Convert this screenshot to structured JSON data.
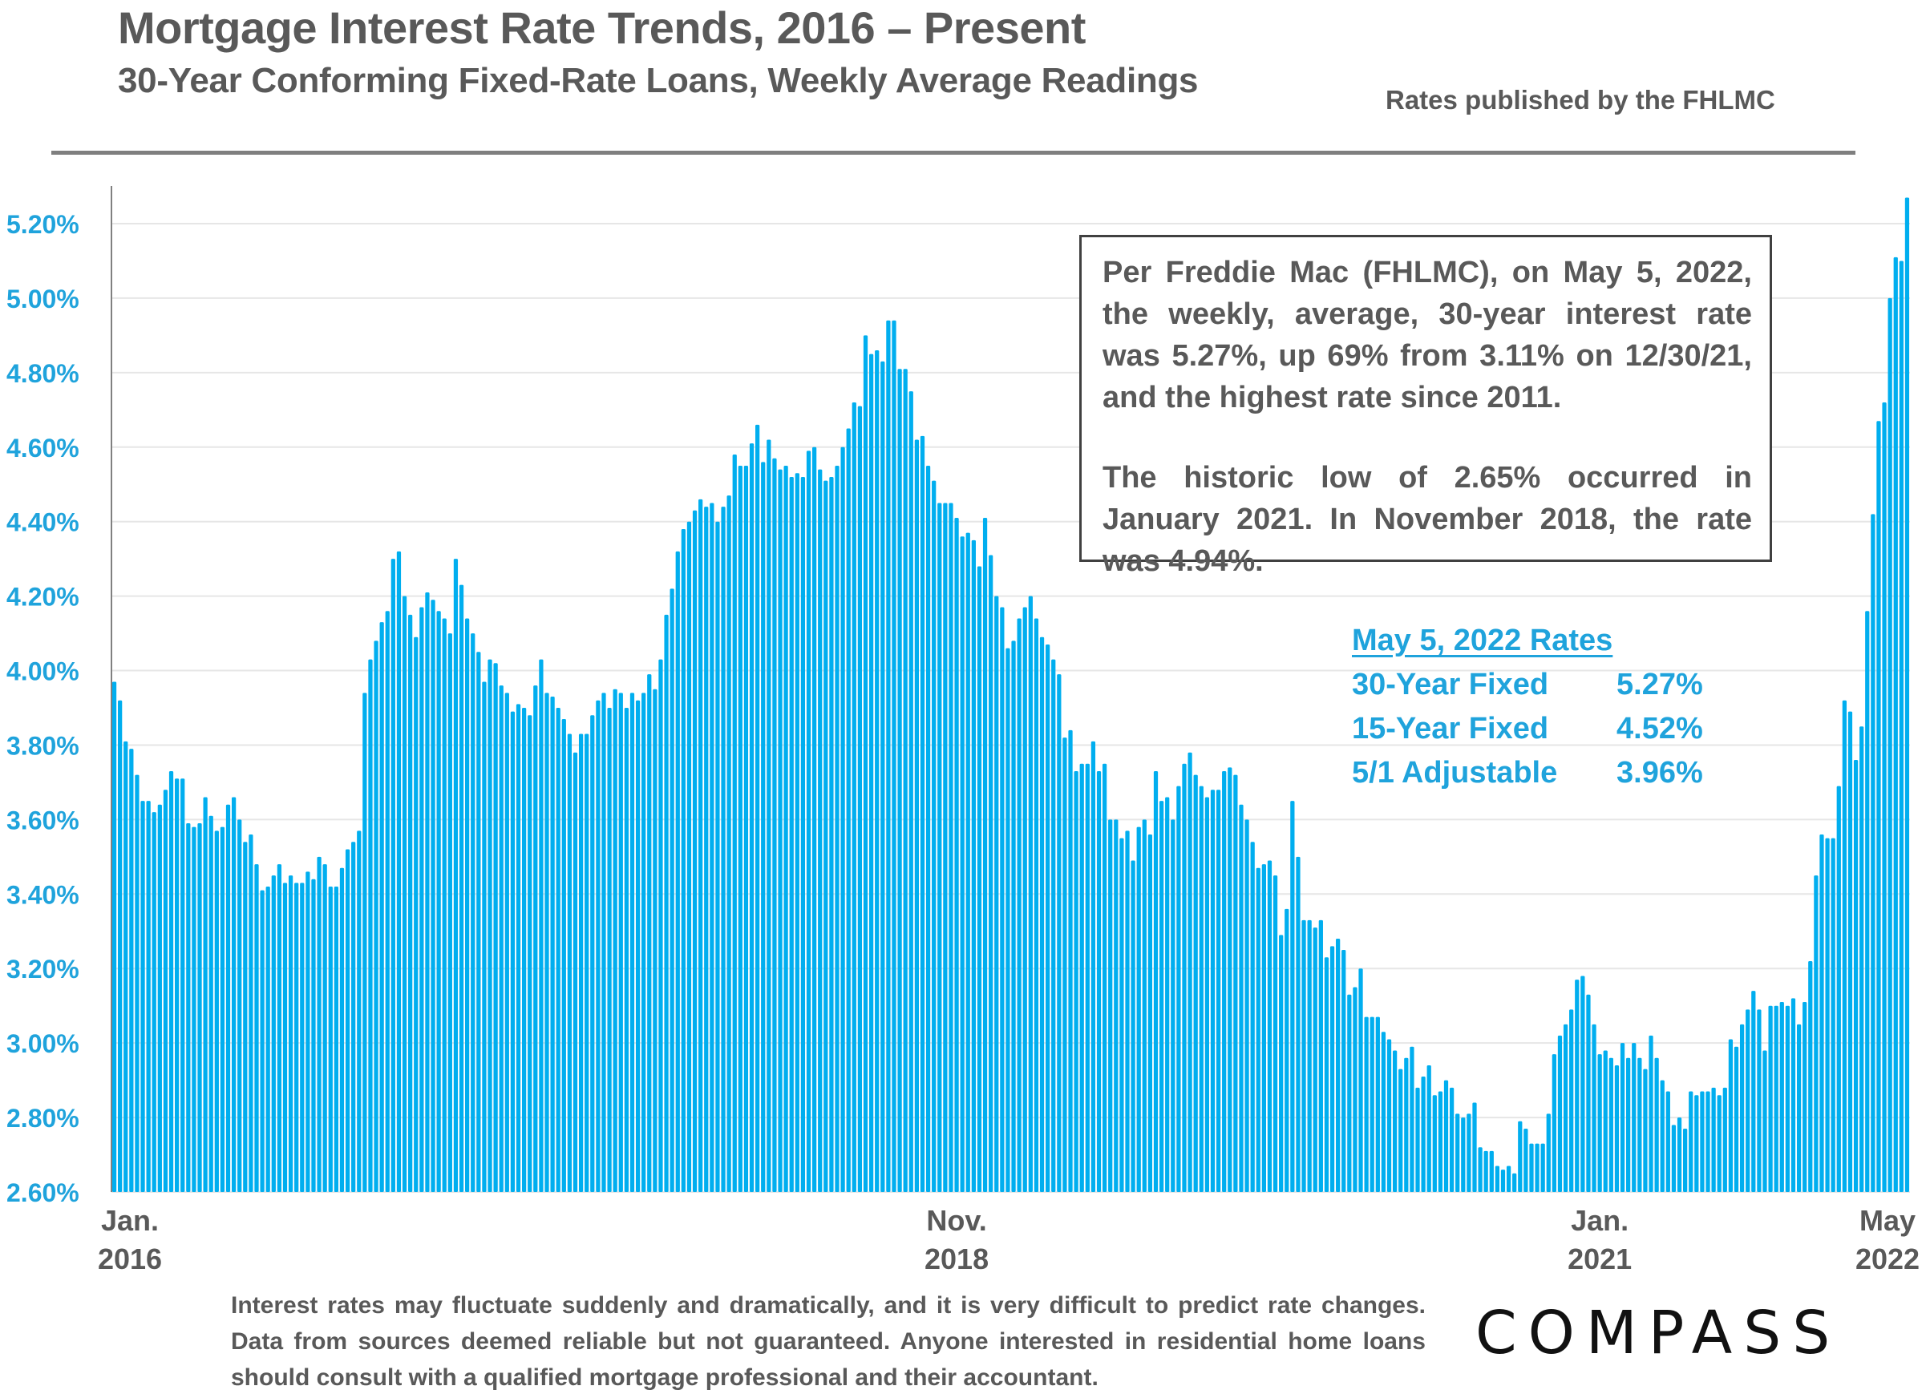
{
  "header": {
    "title": "Mortgage Interest Rate Trends, 2016 – Present",
    "subtitle": "30-Year Conforming Fixed-Rate Loans, Weekly Average Readings",
    "source": "Rates published by the FHLMC"
  },
  "annotation": {
    "paragraph1": "Per Freddie Mac (FHLMC), on May 5, 2022, the weekly, average, 30-year interest rate was 5.27%, up 69% from 3.11% on 12/30/21, and the highest rate since 2011.",
    "paragraph2": "The historic low of 2.65% occurred in January 2021. In November 2018, the rate was 4.94%."
  },
  "rates_panel": {
    "heading": "May 5, 2022 Rates",
    "rows": [
      {
        "label": "30-Year Fixed",
        "value": "5.27%"
      },
      {
        "label": "15-Year Fixed",
        "value": "4.52%"
      },
      {
        "label": "5/1 Adjustable",
        "value": "3.96%"
      }
    ]
  },
  "footer": {
    "disclaimer": "Interest rates may fluctuate suddenly and dramatically, and it is very difficult to predict rate changes. Data from sources deemed reliable but not guaranteed. Anyone interested in residential home loans should consult with a qualified mortgage professional and their accountant.",
    "logo": "COMPASS"
  },
  "colors": {
    "bar": "#00aeef",
    "axis_label": "#1fa3dc",
    "text": "#595959"
  },
  "chart_data": {
    "type": "bar",
    "title": "Mortgage Interest Rate Trends, 2016 – Present",
    "xlabel": "",
    "ylabel": "",
    "ylim": [
      2.6,
      5.3
    ],
    "yticks": [
      2.6,
      2.8,
      3.0,
      3.2,
      3.4,
      3.6,
      3.8,
      4.0,
      4.2,
      4.4,
      4.6,
      4.8,
      5.0,
      5.2
    ],
    "ytick_labels": [
      "2.60%",
      "2.80%",
      "3.00%",
      "3.20%",
      "3.40%",
      "3.60%",
      "3.80%",
      "4.00%",
      "4.20%",
      "4.40%",
      "4.60%",
      "4.80%",
      "5.00%",
      "5.20%"
    ],
    "grid": true,
    "legend": "none",
    "x_labels": [
      {
        "line1": "Jan.",
        "line2": "2016",
        "index": 0
      },
      {
        "line1": "Nov.",
        "line2": "2018",
        "index": 148
      },
      {
        "line1": "Jan.",
        "line2": "2021",
        "index": 261
      },
      {
        "line1": "May",
        "line2": "2022",
        "index": 330
      }
    ],
    "series": [
      {
        "name": "30-Year Fixed (weekly average, %)",
        "values": [
          3.97,
          3.92,
          3.81,
          3.79,
          3.72,
          3.65,
          3.65,
          3.62,
          3.64,
          3.68,
          3.73,
          3.71,
          3.71,
          3.59,
          3.58,
          3.59,
          3.66,
          3.61,
          3.57,
          3.58,
          3.64,
          3.66,
          3.6,
          3.54,
          3.56,
          3.48,
          3.41,
          3.42,
          3.45,
          3.48,
          3.43,
          3.45,
          3.43,
          3.43,
          3.46,
          3.44,
          3.5,
          3.48,
          3.42,
          3.42,
          3.47,
          3.52,
          3.54,
          3.57,
          3.94,
          4.03,
          4.08,
          4.13,
          4.16,
          4.3,
          4.32,
          4.2,
          4.15,
          4.09,
          4.17,
          4.21,
          4.19,
          4.16,
          4.14,
          4.1,
          4.3,
          4.23,
          4.14,
          4.1,
          4.05,
          3.97,
          4.03,
          4.02,
          3.96,
          3.94,
          3.89,
          3.91,
          3.9,
          3.88,
          3.96,
          4.03,
          3.94,
          3.93,
          3.9,
          3.87,
          3.83,
          3.78,
          3.83,
          3.83,
          3.88,
          3.92,
          3.94,
          3.9,
          3.95,
          3.94,
          3.9,
          3.94,
          3.92,
          3.94,
          3.99,
          3.95,
          4.03,
          4.15,
          4.22,
          4.32,
          4.38,
          4.4,
          4.43,
          4.46,
          4.44,
          4.45,
          4.4,
          4.44,
          4.47,
          4.58,
          4.55,
          4.55,
          4.61,
          4.66,
          4.56,
          4.62,
          4.57,
          4.54,
          4.55,
          4.52,
          4.53,
          4.52,
          4.59,
          4.6,
          4.54,
          4.51,
          4.52,
          4.55,
          4.6,
          4.65,
          4.72,
          4.71,
          4.9,
          4.85,
          4.86,
          4.83,
          4.94,
          4.94,
          4.81,
          4.81,
          4.75,
          4.62,
          4.63,
          4.55,
          4.51,
          4.45,
          4.45,
          4.45,
          4.41,
          4.36,
          4.37,
          4.35,
          4.28,
          4.41,
          4.31,
          4.2,
          4.17,
          4.06,
          4.08,
          4.14,
          4.17,
          4.2,
          4.14,
          4.09,
          4.07,
          4.03,
          3.99,
          3.82,
          3.84,
          3.73,
          3.75,
          3.75,
          3.81,
          3.73,
          3.75,
          3.6,
          3.6,
          3.55,
          3.57,
          3.49,
          3.58,
          3.6,
          3.56,
          3.73,
          3.65,
          3.66,
          3.6,
          3.69,
          3.75,
          3.78,
          3.72,
          3.69,
          3.66,
          3.68,
          3.68,
          3.73,
          3.74,
          3.72,
          3.64,
          3.6,
          3.54,
          3.47,
          3.48,
          3.49,
          3.45,
          3.29,
          3.36,
          3.65,
          3.5,
          3.33,
          3.33,
          3.31,
          3.33,
          3.23,
          3.26,
          3.28,
          3.25,
          3.13,
          3.15,
          3.2,
          3.07,
          3.07,
          3.07,
          3.03,
          3.01,
          2.98,
          2.93,
          2.96,
          2.99,
          2.88,
          2.91,
          2.94,
          2.86,
          2.87,
          2.9,
          2.88,
          2.81,
          2.8,
          2.81,
          2.84,
          2.72,
          2.71,
          2.71,
          2.67,
          2.66,
          2.67,
          2.65,
          2.79,
          2.77,
          2.73,
          2.73,
          2.73,
          2.81,
          2.97,
          3.02,
          3.05,
          3.09,
          3.17,
          3.18,
          3.13,
          3.05,
          2.97,
          2.98,
          2.96,
          2.94,
          3.0,
          2.96,
          3.0,
          2.96,
          2.93,
          3.02,
          2.96,
          2.9,
          2.87,
          2.78,
          2.8,
          2.77,
          2.87,
          2.86,
          2.87,
          2.87,
          2.88,
          2.86,
          2.88,
          3.01,
          2.99,
          3.05,
          3.09,
          3.14,
          3.09,
          2.98,
          3.1,
          3.1,
          3.11,
          3.1,
          3.12,
          3.05,
          3.11,
          3.22,
          3.45,
          3.56,
          3.55,
          3.55,
          3.69,
          3.92,
          3.89,
          3.76,
          3.85,
          4.16,
          4.42,
          4.67,
          4.72,
          5.0,
          5.11,
          5.1,
          5.27
        ]
      }
    ]
  }
}
